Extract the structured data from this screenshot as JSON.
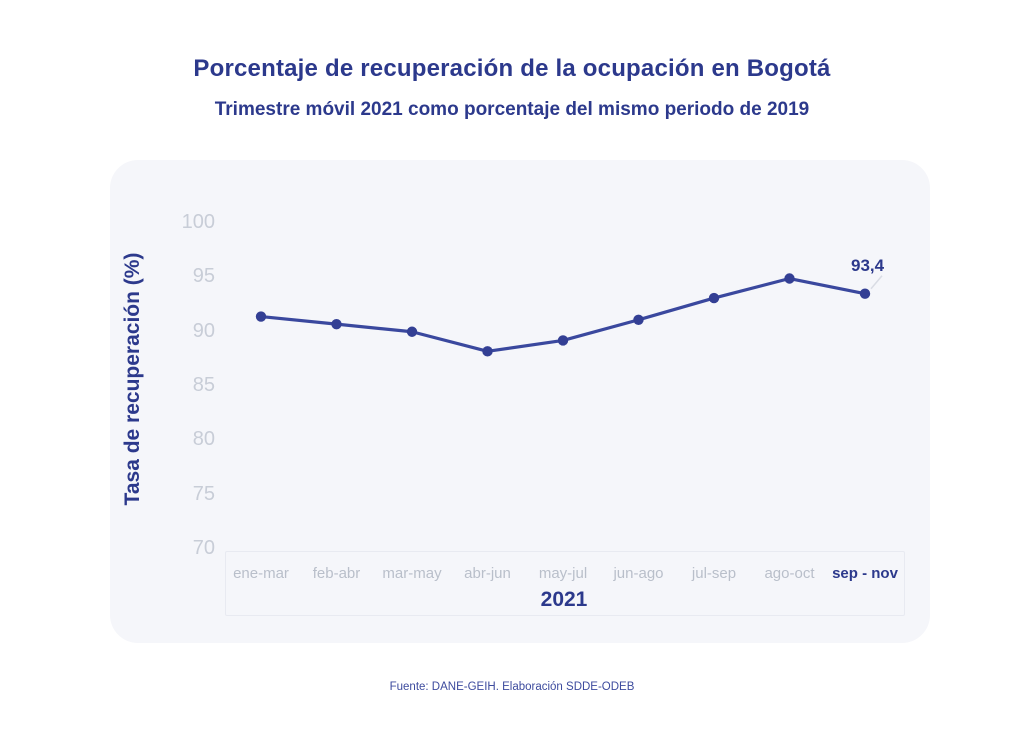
{
  "header": {
    "title": "Porcentaje de recuperación de la ocupación en Bogotá",
    "subtitle": "Trimestre móvil 2021 como porcentaje del mismo periodo de 2019"
  },
  "footer": {
    "source": "Fuente: DANE-GEIH. Elaboración SDDE-ODEB"
  },
  "chart_data": {
    "type": "line",
    "title": "Porcentaje de recuperación de la ocupación en Bogotá",
    "subtitle": "Trimestre móvil 2021 como porcentaje del mismo periodo de 2019",
    "categories": [
      "ene-mar",
      "feb-abr",
      "mar-may",
      "abr-jun",
      "may-jul",
      "jun-ago",
      "jul-sep",
      "ago-oct",
      "sep - nov"
    ],
    "values": [
      91.3,
      90.6,
      89.9,
      88.1,
      89.1,
      91.0,
      93.0,
      94.8,
      93.4
    ],
    "xlabel": "2021",
    "ylabel": "Tasa de recuperación (%)",
    "ylim": [
      70,
      100
    ],
    "yticks": [
      100,
      95,
      90,
      85,
      80,
      75,
      70
    ],
    "grid": false,
    "legend": false,
    "last_point_label": "93,4",
    "highlighted_category": "sep - nov",
    "colors": {
      "line": "#3a489e",
      "marker": "#333f94",
      "title": "#2c398c",
      "y_tick_labels": "#c8cdd7",
      "x_labels": "#b9bfca",
      "x_label_highlight": "#2c398c",
      "panel_background": "#f5f6fa",
      "axis_frame": "#e8eaf1",
      "annotation_leader": "#d9dce4",
      "source": "#3d4b9e"
    }
  }
}
